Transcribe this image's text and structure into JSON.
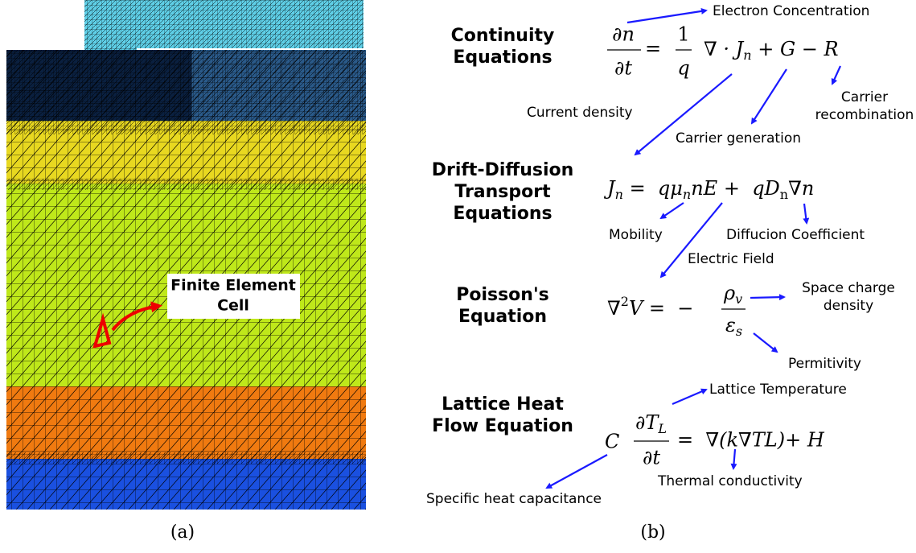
{
  "panel_a": {
    "callout": [
      "Finite Element",
      "Cell"
    ],
    "caption": "(a)"
  },
  "panel_b": {
    "caption": "(b)",
    "continuity": {
      "title": [
        "Continuity",
        "Equations"
      ],
      "eq": {
        "lhs_num": "∂n",
        "lhs_den": "∂t",
        "equals": "=",
        "coef_num": "1",
        "coef_den": "q",
        "rhs": [
          "∇ · J",
          "n",
          " + G − R"
        ]
      },
      "annotations": {
        "electron_concentration": "Electron Concentration",
        "current_density": "Current density",
        "carrier_recombination": [
          "Carrier",
          "recombination"
        ],
        "carrier_generation": "Carrier generation"
      }
    },
    "drift_diffusion": {
      "title": [
        "Drift-Diffusion",
        "Transport",
        "Equations"
      ],
      "eq": [
        "J",
        "n",
        " =  qμ",
        "n",
        "nE +  qD",
        "n",
        "∇n"
      ],
      "annotations": {
        "mobility": "Mobility",
        "diffusion_coefficient": "Diffucion Coefficient",
        "electric_field": "Electric Field"
      }
    },
    "poisson": {
      "title": [
        "Poisson's",
        "Equation"
      ],
      "eq": {
        "lhs": [
          "∇",
          "2",
          "V =  −"
        ],
        "num": [
          "ρ",
          "v"
        ],
        "den": [
          "ε",
          "s"
        ]
      },
      "annotations": {
        "space_charge_density": [
          "Space charge",
          "density"
        ],
        "permittivity": "Permitivity"
      }
    },
    "heat_flow": {
      "title": [
        "Lattice Heat",
        "Flow Equation"
      ],
      "eq": {
        "coef": "C",
        "num": [
          "∂T",
          "L"
        ],
        "den": "∂t",
        "rhs": "=  ∇(k∇TL)+ H"
      },
      "annotations": {
        "lattice_temperature": "Lattice Temperature",
        "thermal_conductivity": "Thermal conductivity",
        "specific_heat": "Specific heat capacitance"
      }
    }
  }
}
